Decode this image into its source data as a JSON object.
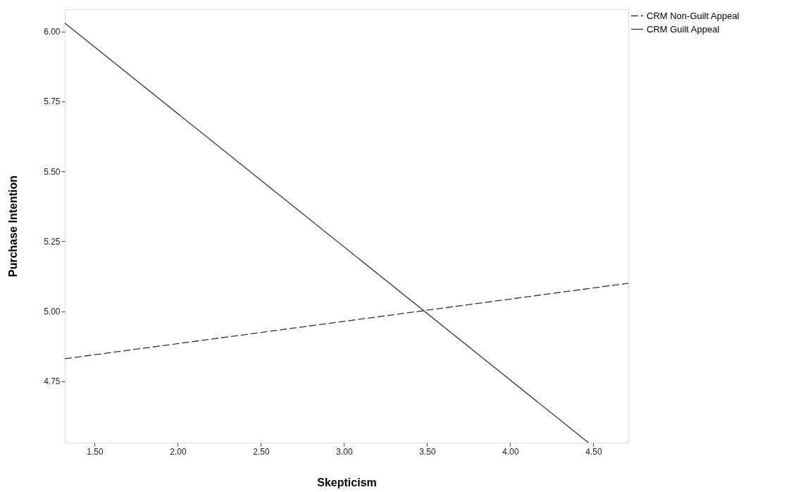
{
  "chart_data": {
    "type": "line",
    "xlabel": "Skepticism",
    "ylabel": "Purchase Intention",
    "xlim": [
      1.32,
      4.71
    ],
    "ylim": [
      4.53,
      6.08
    ],
    "xticks": [
      {
        "value": 1.5,
        "label": "1.50"
      },
      {
        "value": 2,
        "label": "2.00"
      },
      {
        "value": 2.5,
        "label": "2.50"
      },
      {
        "value": 3,
        "label": "3.00"
      },
      {
        "value": 3.5,
        "label": "3.50"
      },
      {
        "value": 4,
        "label": "4.00"
      },
      {
        "value": 4.5,
        "label": "4.50"
      }
    ],
    "yticks": [
      {
        "value": 4.75,
        "label": "4.75"
      },
      {
        "value": 5,
        "label": "5.00"
      },
      {
        "value": 5.25,
        "label": "5.25"
      },
      {
        "value": 5.5,
        "label": "5.50"
      },
      {
        "value": 5.75,
        "label": "5.75"
      },
      {
        "value": 6,
        "label": "6.00"
      }
    ],
    "grid": false,
    "legend": "top right",
    "marker": "none",
    "series": [
      {
        "name": "CRM Non-Guilt Appeal",
        "color": "#333333",
        "line_style": "dashed",
        "x": [
          1.32,
          4.71
        ],
        "values": [
          4.83,
          5.1
        ]
      },
      {
        "name": "CRM Guilt Appeal",
        "color": "#333333",
        "line_style": "solid",
        "x": [
          1.32,
          4.47
        ],
        "values": [
          6.03,
          4.53
        ]
      }
    ]
  }
}
